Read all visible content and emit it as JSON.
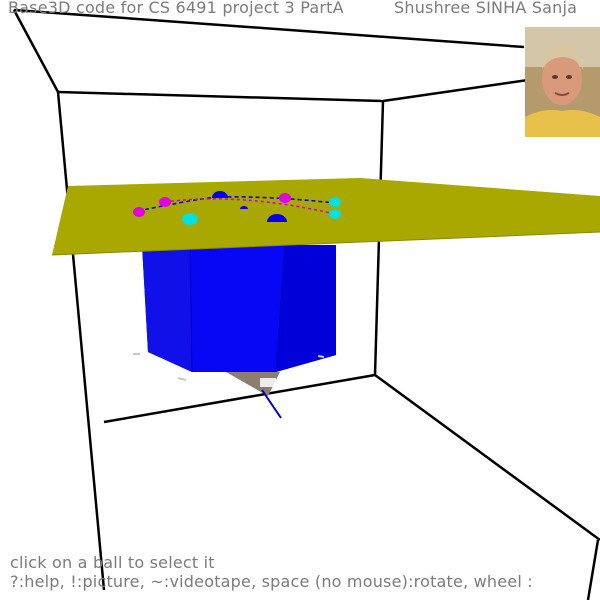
{
  "header": {
    "title": "Base3D code for CS 6491 project 3 PartA",
    "authors": "Shushree SINHA Sanja"
  },
  "photo": {
    "icon": "author-portrait-icon"
  },
  "footer": {
    "status": "click on a ball to select it",
    "help": "?:help, !:picture, ~:videotape, space (no mouse):rotate, wheel :"
  },
  "scene": {
    "floor_color": "#a8a800",
    "prism_color": "#0000ee",
    "ball_colors": [
      "#e000e0",
      "#0000ee",
      "#00e0e0"
    ]
  }
}
